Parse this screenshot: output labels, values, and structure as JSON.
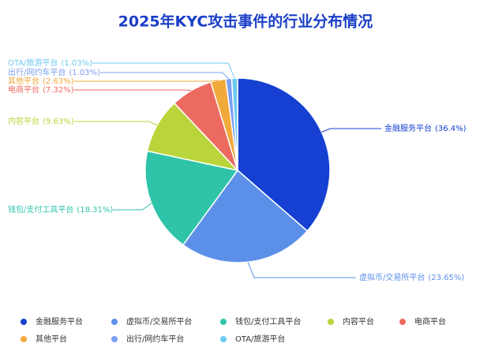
{
  "chart_data": {
    "type": "pie",
    "title": "2025年KYC攻击事件的行业分布情况",
    "categories": [
      "金融服务平台",
      "虚拟币/交易所平台",
      "钱包/支付工具平台",
      "内容平台",
      "电商平台",
      "其他平台",
      "出行/网约车平台",
      "OTA/旅游平台"
    ],
    "values": [
      36.4,
      23.65,
      18.31,
      9.63,
      7.32,
      2.63,
      1.03,
      1.03
    ],
    "value_labels": [
      "(36.4%)",
      "(23.65%)",
      "(18.31%)",
      "(9.63%)",
      "(7.32%)",
      "(2.63%)",
      "(1.03%)",
      "(1.03%)"
    ],
    "colors": [
      "#1640d2",
      "#5c90e8",
      "#2fc4a9",
      "#b9d53b",
      "#ec6a5f",
      "#f2a93c",
      "#7b9ff0",
      "#6dc9f1"
    ]
  }
}
